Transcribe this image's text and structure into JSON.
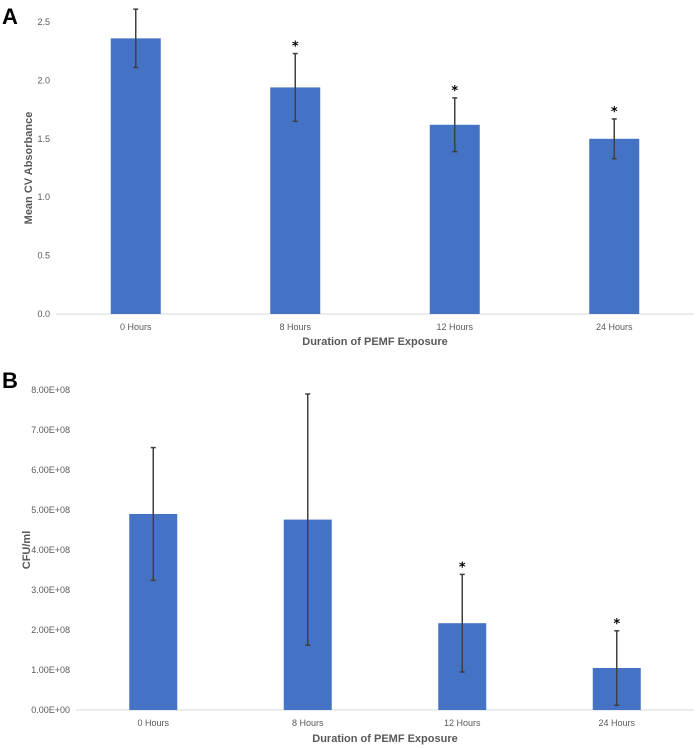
{
  "panels": {
    "a_label": "A",
    "b_label": "B"
  },
  "chart_data": [
    {
      "type": "bar",
      "panel": "A",
      "categories": [
        "0 Hours",
        "8 Hours",
        "12 Hours",
        "24 Hours"
      ],
      "values": [
        2.36,
        1.94,
        1.62,
        1.5
      ],
      "error": [
        0.25,
        0.29,
        0.23,
        0.17
      ],
      "significance": [
        "",
        "*",
        "*",
        "*"
      ],
      "ylim": [
        0,
        2.5
      ],
      "yticks": [
        0,
        0.5,
        1.0,
        1.5,
        2.0,
        2.5
      ],
      "yticklabels": [
        "0.0",
        "0.5",
        "1.0",
        "1.5",
        "2.0",
        "2.5"
      ],
      "xlabel": "Duration of PEMF Exposure",
      "ylabel": "Mean CV Absorbance",
      "bar_color": "#4472C4",
      "grid": false
    },
    {
      "type": "bar",
      "panel": "B",
      "categories": [
        "0 Hours",
        "8 Hours",
        "12 Hours",
        "24 Hours"
      ],
      "values": [
        490000000,
        476000000,
        217000000,
        105000000
      ],
      "error": [
        166000000,
        314000000,
        122000000,
        93000000
      ],
      "significance": [
        "",
        "",
        "*",
        "*"
      ],
      "ylim": [
        0,
        800000000
      ],
      "yticks": [
        0,
        100000000,
        200000000,
        300000000,
        400000000,
        500000000,
        600000000,
        700000000,
        800000000
      ],
      "yticklabels": [
        "0.00E+00",
        "1.00E+08",
        "2.00E+08",
        "3.00E+08",
        "4.00E+08",
        "5.00E+08",
        "6.00E+08",
        "7.00E+08",
        "8.00E+08"
      ],
      "xlabel": "Duration of PEMF Exposure",
      "ylabel": "CFU/ml",
      "bar_color": "#4472C4",
      "grid": false
    }
  ]
}
